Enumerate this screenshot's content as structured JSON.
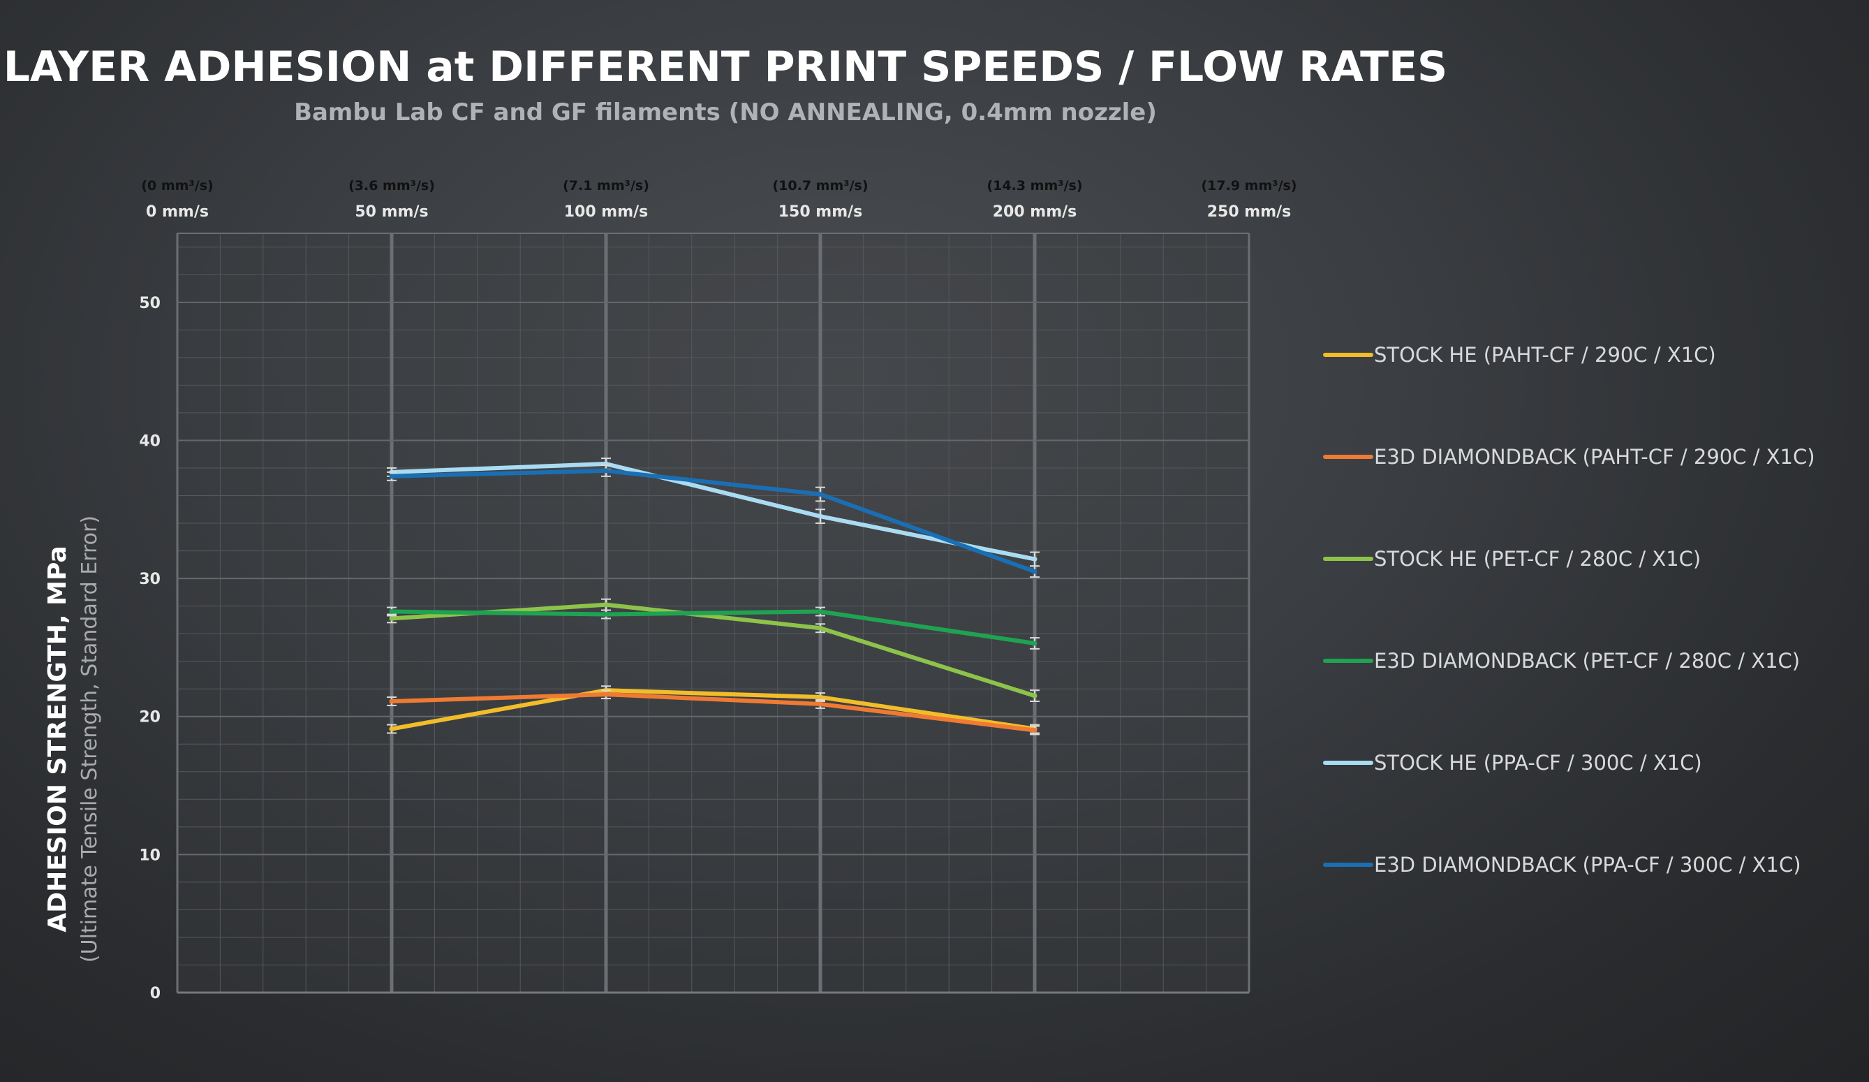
{
  "chart_data": {
    "type": "line",
    "title": "LAYER ADHESION at DIFFERENT PRINT SPEEDS / FLOW RATES",
    "subtitle": "Bambu Lab CF and GF filaments (NO ANNEALING, 0.4mm nozzle)",
    "ylabel": "ADHESION STRENGTH, MPa",
    "ylabel_sub": "(Ultimate Tensile Strength, Standard Error)",
    "x_ticks": [
      "0 mm/s",
      "50 mm/s",
      "100 mm/s",
      "150 mm/s",
      "200 mm/s",
      "250 mm/s"
    ],
    "x_tick_values": [
      0,
      50,
      100,
      150,
      200,
      250
    ],
    "flow_ticks": [
      "(0 mm³/s)",
      "(3.6 mm³/s)",
      "(7.1 mm³/s)",
      "(10.7 mm³/s)",
      "(14.3 mm³/s)",
      "(17.9 mm³/s)"
    ],
    "y_ticks": [
      "0",
      "10",
      "20",
      "30",
      "40",
      "50"
    ],
    "xlim": [
      0,
      250
    ],
    "ylim": [
      0,
      55
    ],
    "grid": true,
    "legend_position": "right",
    "x": [
      50,
      100,
      150,
      200
    ],
    "series": [
      {
        "name": "STOCK HE (PAHT-CF / 290C / X1C)",
        "color": "#f2bd2a",
        "values": [
          19.1,
          21.9,
          21.4,
          19.1
        ],
        "errors": [
          0.3,
          0.3,
          0.3,
          0.3
        ]
      },
      {
        "name": "E3D DIAMONDBACK (PAHT-CF / 290C / X1C)",
        "color": "#ef7a34",
        "values": [
          21.1,
          21.6,
          20.9,
          19.0
        ],
        "errors": [
          0.3,
          0.3,
          0.3,
          0.3
        ]
      },
      {
        "name": "STOCK HE (PET-CF / 280C / X1C)",
        "color": "#8dc34a",
        "values": [
          27.1,
          28.1,
          26.4,
          21.5
        ],
        "errors": [
          0.3,
          0.4,
          0.3,
          0.4
        ]
      },
      {
        "name": "E3D DIAMONDBACK (PET-CF / 280C / X1C)",
        "color": "#1fa352",
        "values": [
          27.6,
          27.4,
          27.6,
          25.3
        ],
        "errors": [
          0.3,
          0.3,
          0.3,
          0.4
        ]
      },
      {
        "name": "STOCK HE (PPA-CF / 300C / X1C)",
        "color": "#a9dcf2",
        "values": [
          37.7,
          38.3,
          34.5,
          31.4
        ],
        "errors": [
          0.3,
          0.4,
          0.5,
          0.5
        ]
      },
      {
        "name": "E3D DIAMONDBACK (PPA-CF / 300C / X1C)",
        "color": "#1a6fb4",
        "values": [
          37.4,
          37.8,
          36.1,
          30.5
        ],
        "errors": [
          0.3,
          0.4,
          0.5,
          0.4
        ]
      }
    ]
  }
}
